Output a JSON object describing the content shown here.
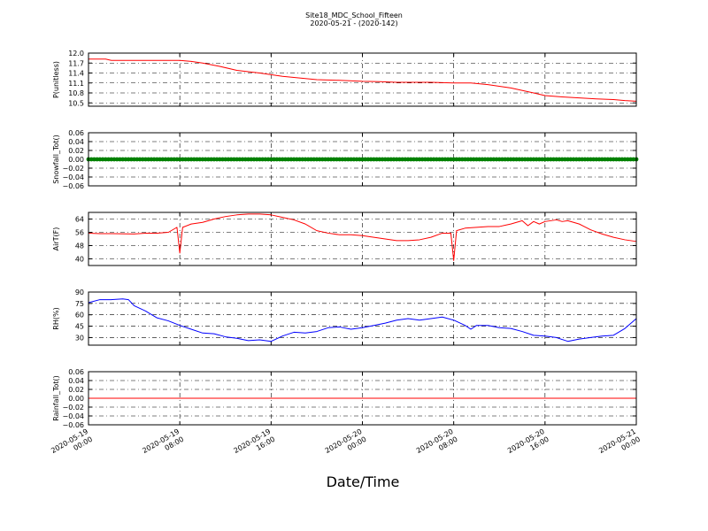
{
  "figure": {
    "title": "Site18_MDC_School_Fifteen",
    "subtitle": "2020-05-21 - (2020-142)",
    "xlabel": "Date/Time"
  },
  "x_ticks": [
    {
      "d": "2020-05-19",
      "t": "00:00"
    },
    {
      "d": "2020-05-19",
      "t": "08:00"
    },
    {
      "d": "2020-05-19",
      "t": "16:00"
    },
    {
      "d": "2020-05-20",
      "t": "00:00"
    },
    {
      "d": "2020-05-20",
      "t": "08:00"
    },
    {
      "d": "2020-05-20",
      "t": "16:00"
    },
    {
      "d": "2020-05-21",
      "t": "00:00"
    }
  ],
  "chart_data": [
    {
      "type": "line",
      "ylabel": "P(unitless)",
      "ylim": [
        10.4,
        12.0
      ],
      "yticks": [
        "12.0",
        "11.7",
        "11.4",
        "11.1",
        "10.8",
        "10.5"
      ],
      "ytick_values": [
        12.0,
        11.7,
        11.4,
        11.1,
        10.8,
        10.5
      ],
      "grid": true,
      "series": [
        {
          "color": "#ff0000",
          "x": [
            "2020-05-19 00:00",
            "2020-05-19 01:30",
            "2020-05-19 02:00",
            "2020-05-19 08:00",
            "2020-05-19 09:00",
            "2020-05-19 10:00",
            "2020-05-19 11:30",
            "2020-05-19 13:00",
            "2020-05-19 15:00",
            "2020-05-19 17:00",
            "2020-05-19 18:30",
            "2020-05-19 20:00",
            "2020-05-19 22:00",
            "2020-05-20 00:00",
            "2020-05-20 01:30",
            "2020-05-20 03:00",
            "2020-05-20 06:00",
            "2020-05-20 08:00",
            "2020-05-20 09:30",
            "2020-05-20 11:00",
            "2020-05-20 13:00",
            "2020-05-20 15:00",
            "2020-05-20 16:00",
            "2020-05-20 17:30",
            "2020-05-20 19:00",
            "2020-05-20 20:30",
            "2020-05-20 22:00",
            "2020-05-20 23:00",
            "2020-05-21 00:00"
          ],
          "y": [
            11.82,
            11.82,
            11.78,
            11.78,
            11.75,
            11.7,
            11.6,
            11.48,
            11.4,
            11.3,
            11.25,
            11.2,
            11.18,
            11.15,
            11.14,
            11.12,
            11.12,
            11.1,
            11.1,
            11.05,
            10.95,
            10.8,
            10.72,
            10.68,
            10.65,
            10.62,
            10.6,
            10.57,
            10.55
          ]
        }
      ]
    },
    {
      "type": "scatter",
      "ylabel": "Snowfall_Tot()",
      "ylim": [
        -0.06,
        0.06
      ],
      "yticks": [
        "0.06",
        "0.04",
        "0.02",
        "0.00",
        "−0.02",
        "−0.04",
        "−0.06"
      ],
      "ytick_values": [
        0.06,
        0.04,
        0.02,
        0.0,
        -0.02,
        -0.04,
        -0.06
      ],
      "grid": true,
      "series": [
        {
          "color": "#008000",
          "x_range": [
            "2020-05-19 00:00",
            "2020-05-21 00:00"
          ],
          "interval_minutes": 15,
          "y_constant": 0.0
        }
      ]
    },
    {
      "type": "line",
      "ylabel": "AirT(F)",
      "ylim": [
        36,
        68
      ],
      "yticks": [
        "64",
        "56",
        "48",
        "40"
      ],
      "ytick_values": [
        64,
        56,
        48,
        40
      ],
      "grid": true,
      "series": [
        {
          "color": "#ff0000",
          "x": [
            "2020-05-19 00:00",
            "2020-05-19 01:00",
            "2020-05-19 02:00",
            "2020-05-19 04:00",
            "2020-05-19 05:00",
            "2020-05-19 06:00",
            "2020-05-19 07:00",
            "2020-05-19 07:45",
            "2020-05-19 08:00",
            "2020-05-19 08:15",
            "2020-05-19 09:00",
            "2020-05-19 10:00",
            "2020-05-19 11:00",
            "2020-05-19 12:00",
            "2020-05-19 13:00",
            "2020-05-19 14:00",
            "2020-05-19 15:00",
            "2020-05-19 16:00",
            "2020-05-19 17:00",
            "2020-05-19 18:00",
            "2020-05-19 19:00",
            "2020-05-19 20:00",
            "2020-05-19 21:00",
            "2020-05-19 22:00",
            "2020-05-19 23:00",
            "2020-05-20 00:00",
            "2020-05-20 01:00",
            "2020-05-20 02:00",
            "2020-05-20 03:00",
            "2020-05-20 04:00",
            "2020-05-20 05:00",
            "2020-05-20 06:00",
            "2020-05-20 07:00",
            "2020-05-20 07:45",
            "2020-05-20 08:00",
            "2020-05-20 08:15",
            "2020-05-20 09:00",
            "2020-05-20 10:00",
            "2020-05-20 11:00",
            "2020-05-20 12:00",
            "2020-05-20 13:00",
            "2020-05-20 14:00",
            "2020-05-20 14:30",
            "2020-05-20 15:00",
            "2020-05-20 15:30",
            "2020-05-20 16:00",
            "2020-05-20 17:00",
            "2020-05-20 17:30",
            "2020-05-20 18:00",
            "2020-05-20 19:00",
            "2020-05-20 20:00",
            "2020-05-20 21:00",
            "2020-05-20 22:00",
            "2020-05-20 23:00",
            "2020-05-21 00:00"
          ],
          "y": [
            55.5,
            55.2,
            55.2,
            55,
            55.5,
            55.5,
            56,
            59,
            43.5,
            59,
            61,
            62,
            64,
            65.5,
            66.5,
            67,
            67,
            66.5,
            65,
            63.5,
            61,
            57,
            55.5,
            54.5,
            54.5,
            54,
            53,
            52,
            51,
            51,
            51.5,
            53,
            55.5,
            55.5,
            39,
            57,
            58.5,
            59,
            59.5,
            59.5,
            61,
            63,
            60,
            62.5,
            61,
            62.5,
            63.5,
            62.5,
            63,
            61,
            57.5,
            55,
            53,
            51.5,
            50.5
          ]
        }
      ]
    },
    {
      "type": "line",
      "ylabel": "RH(%)",
      "ylim": [
        20,
        90
      ],
      "yticks": [
        "90",
        "75",
        "60",
        "45",
        "30"
      ],
      "ytick_values": [
        90,
        75,
        60,
        45,
        30
      ],
      "grid": true,
      "series": [
        {
          "color": "#0000ff",
          "x": [
            "2020-05-19 00:00",
            "2020-05-19 01:00",
            "2020-05-19 02:00",
            "2020-05-19 03:00",
            "2020-05-19 03:30",
            "2020-05-19 04:00",
            "2020-05-19 05:00",
            "2020-05-19 06:00",
            "2020-05-19 07:00",
            "2020-05-19 08:00",
            "2020-05-19 09:00",
            "2020-05-19 10:00",
            "2020-05-19 11:00",
            "2020-05-19 12:00",
            "2020-05-19 13:00",
            "2020-05-19 14:00",
            "2020-05-19 15:00",
            "2020-05-19 16:00",
            "2020-05-19 17:00",
            "2020-05-19 18:00",
            "2020-05-19 19:00",
            "2020-05-19 20:00",
            "2020-05-19 21:00",
            "2020-05-19 22:00",
            "2020-05-19 23:00",
            "2020-05-20 00:00",
            "2020-05-20 01:00",
            "2020-05-20 02:00",
            "2020-05-20 03:00",
            "2020-05-20 04:00",
            "2020-05-20 05:00",
            "2020-05-20 06:00",
            "2020-05-20 07:00",
            "2020-05-20 08:00",
            "2020-05-20 09:00",
            "2020-05-20 09:30",
            "2020-05-20 10:00",
            "2020-05-20 11:00",
            "2020-05-20 12:00",
            "2020-05-20 13:00",
            "2020-05-20 14:00",
            "2020-05-20 15:00",
            "2020-05-20 16:00",
            "2020-05-20 17:00",
            "2020-05-20 18:00",
            "2020-05-20 19:00",
            "2020-05-20 20:00",
            "2020-05-20 21:00",
            "2020-05-20 22:00",
            "2020-05-20 23:00",
            "2020-05-21 00:00"
          ],
          "y": [
            76,
            80,
            80,
            81,
            80,
            72,
            65,
            56,
            52,
            46,
            41,
            36,
            35,
            31,
            29,
            26,
            27,
            25,
            32,
            37,
            36,
            38,
            43,
            44,
            41,
            43,
            46,
            49,
            53,
            55,
            53,
            55,
            57,
            53,
            46,
            41,
            46,
            46,
            43,
            42,
            38,
            33,
            32,
            30,
            25,
            28,
            30,
            32,
            33,
            42,
            55
          ]
        }
      ]
    },
    {
      "type": "line",
      "ylabel": "Rainfall_Tot()",
      "ylim": [
        -0.06,
        0.06
      ],
      "yticks": [
        "0.06",
        "0.04",
        "0.02",
        "0.00",
        "−0.02",
        "−0.04",
        "−0.06"
      ],
      "ytick_values": [
        0.06,
        0.04,
        0.02,
        0.0,
        -0.02,
        -0.04,
        -0.06
      ],
      "grid": true,
      "series": [
        {
          "color": "#ff0000",
          "x": [
            "2020-05-19 00:00",
            "2020-05-21 00:00"
          ],
          "y": [
            0.0,
            0.0
          ]
        }
      ]
    }
  ]
}
